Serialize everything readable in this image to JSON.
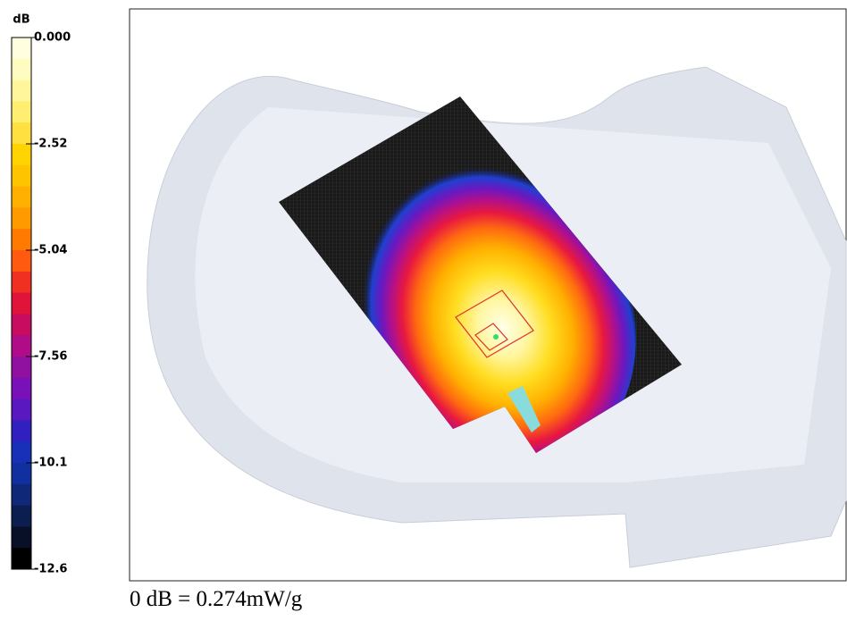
{
  "colorbar": {
    "unit": "dB",
    "ticks": [
      "0.000",
      "-2.52",
      "-5.04",
      "-7.56",
      "-10.1",
      "-12.6"
    ]
  },
  "caption": "0 dB = 0.274mW/g"
}
